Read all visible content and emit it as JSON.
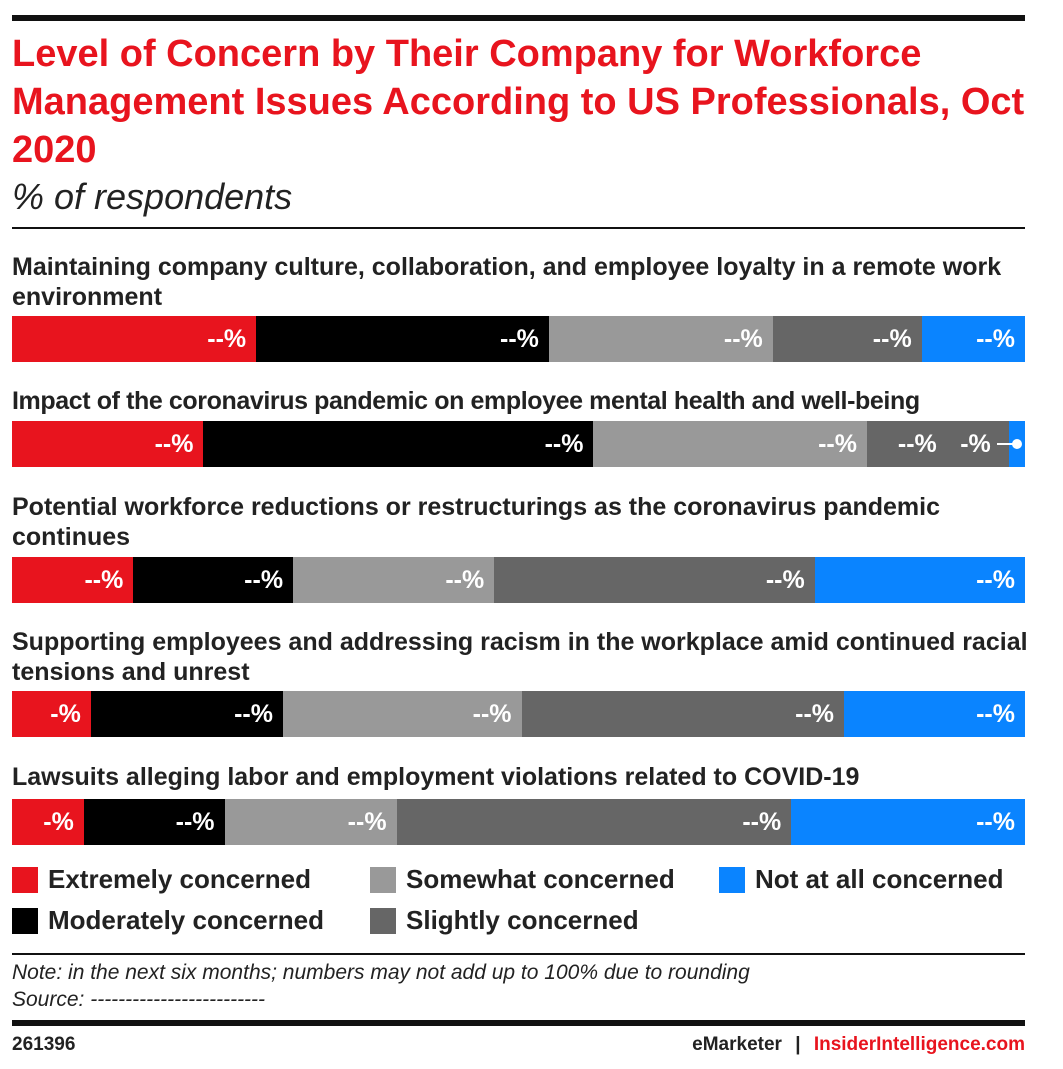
{
  "title": "Level of Concern by Their Company for Workforce Management Issues According to US Professionals, Oct 2020",
  "subtitle": "% of respondents",
  "chart_data": {
    "type": "bar",
    "orientation": "horizontal-stacked-100",
    "xlim": [
      0,
      100
    ],
    "categories": [
      "Maintaining company culture, collaboration, and employee loyalty in a remote work environment",
      "Impact of the coronavirus pandemic on employee mental health and well-being",
      "Potential workforce reductions or restructurings as the coronavirus pandemic continues",
      "Supporting employees and addressing racism in the workplace amid continued racial tensions and unrest",
      "Lawsuits alleging labor and employment violations related to COVID-19"
    ],
    "series": [
      {
        "name": "Extremely concerned",
        "color": "#e8141e",
        "values": [
          24.1,
          18.9,
          12.0,
          7.8,
          7.1
        ],
        "labels": [
          "--%",
          "--%",
          "--%",
          "-%",
          "-%"
        ]
      },
      {
        "name": "Moderately concerned",
        "color": "#000000",
        "values": [
          28.9,
          38.5,
          15.8,
          19.0,
          13.9
        ],
        "labels": [
          "--%",
          "--%",
          "--%",
          "--%",
          "--%"
        ]
      },
      {
        "name": "Somewhat concerned",
        "color": "#999999",
        "values": [
          22.1,
          27.0,
          19.9,
          23.6,
          17.0
        ],
        "labels": [
          "--%",
          "--%",
          "--%",
          "--%",
          "--%"
        ]
      },
      {
        "name": "Slightly concerned",
        "color": "#666666",
        "values": [
          14.7,
          14.0,
          31.7,
          31.9,
          39.0
        ],
        "labels": [
          "--%",
          "--%",
          "--%",
          "--%",
          "--%"
        ]
      },
      {
        "name": "Not at all concerned",
        "color": "#0a84ff",
        "values": [
          10.2,
          1.6,
          20.8,
          17.9,
          23.1
        ],
        "labels": [
          "--%",
          "-%",
          "--%",
          "--%",
          "--%"
        ]
      }
    ],
    "legend_placement": "bottom"
  },
  "note": "Note: in the next six months; numbers may not add up to 100% due to rounding",
  "source": "Source: -------------------------",
  "chart_id": "261396",
  "brand_left": "eMarketer",
  "brand_sep": "|",
  "brand_right": "InsiderIntelligence.com"
}
